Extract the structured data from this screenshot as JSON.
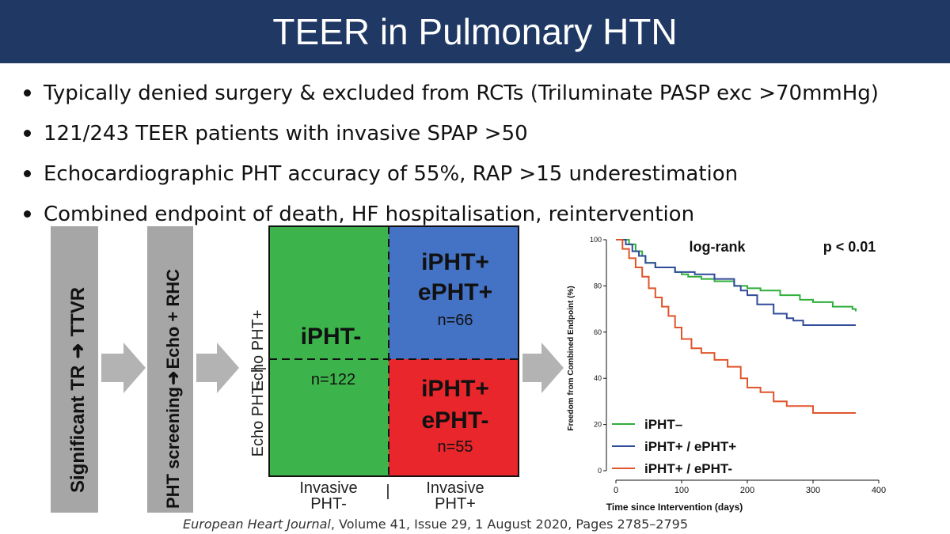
{
  "title": "TEER in Pulmonary HTN",
  "bullets": [
    "Typically denied surgery & excluded from RCTs (Triluminate PASP exc >70mmHg)",
    "121/243 TEER patients with invasive SPAP >50",
    "Echocardiographic PHT accuracy of 55%, RAP >15 underestimation",
    "Combined endpoint of death, HF hospitalisation, reintervention"
  ],
  "flow": {
    "step1": "Significant TR",
    "step1_arrow": "➜",
    "step1_end": "TTVR",
    "step2": "PHT screening",
    "step2_arrow": "➜",
    "step2_end": "Echo + RHC"
  },
  "matrix": {
    "y_top": "Echo PHT+",
    "y_sep": "|",
    "y_bottom": "Echo PHT-",
    "x_left_1": "Invasive",
    "x_left_2": "PHT-",
    "x_sep": "|",
    "x_right_1": "Invasive",
    "x_right_2": "PHT+",
    "green_label": "iPHT-",
    "green_n": "n=122",
    "blue_label_1": "iPHT+",
    "blue_label_2": "ePHT+",
    "blue_n": "n=66",
    "red_label_1": "iPHT+",
    "red_label_2": "ePHT-",
    "red_n": "n=55",
    "colors": {
      "green": "#3cb44b",
      "blue": "#4472c4",
      "red": "#e8262b"
    }
  },
  "chart_data": {
    "type": "line",
    "title": "",
    "annotation_left": "log-rank",
    "annotation_right": "p < 0.01",
    "xlabel": "Time since Intervention (days)",
    "ylabel": "Freedom from Combined Endpoint (%)",
    "xlim": [
      0,
      400
    ],
    "ylim": [
      0,
      100
    ],
    "xticks": [
      "0",
      "100",
      "200",
      "300",
      "400"
    ],
    "yticks": [
      "0",
      "20",
      "40",
      "60",
      "80",
      "100"
    ],
    "legend_position": "bottom-left",
    "series": [
      {
        "name": "iPHT–",
        "color": "#2fae3a",
        "x": [
          0,
          20,
          30,
          40,
          45,
          60,
          90,
          100,
          110,
          130,
          150,
          180,
          200,
          220,
          250,
          280,
          300,
          330,
          360,
          365
        ],
        "y": [
          100,
          98,
          95,
          93,
          90,
          88,
          86,
          85,
          84,
          83,
          82,
          80,
          79,
          78,
          76,
          74,
          73,
          71,
          70,
          69
        ]
      },
      {
        "name": "iPHT+ / ePHT+",
        "color": "#2f4b9a",
        "x": [
          0,
          15,
          25,
          35,
          45,
          60,
          90,
          120,
          150,
          180,
          190,
          200,
          215,
          240,
          260,
          270,
          285,
          300,
          330,
          365
        ],
        "y": [
          100,
          98,
          95,
          93,
          90,
          88,
          86,
          85,
          83,
          80,
          78,
          76,
          72,
          68,
          66,
          65,
          63,
          63,
          63,
          63
        ]
      },
      {
        "name": "iPHT+ / ePHT-",
        "color": "#e0542b",
        "x": [
          0,
          10,
          20,
          30,
          40,
          50,
          60,
          70,
          80,
          90,
          100,
          115,
          130,
          150,
          170,
          190,
          200,
          220,
          240,
          260,
          280,
          300,
          330,
          365
        ],
        "y": [
          100,
          96,
          92,
          88,
          84,
          79,
          75,
          71,
          67,
          62,
          57,
          53,
          51,
          48,
          45,
          40,
          36,
          34,
          30,
          28,
          28,
          25,
          25,
          25
        ]
      }
    ]
  },
  "citation": {
    "journal": "European Heart Journal",
    "rest": ", Volume 41, Issue 29, 1 August 2020, Pages 2785–2795"
  }
}
